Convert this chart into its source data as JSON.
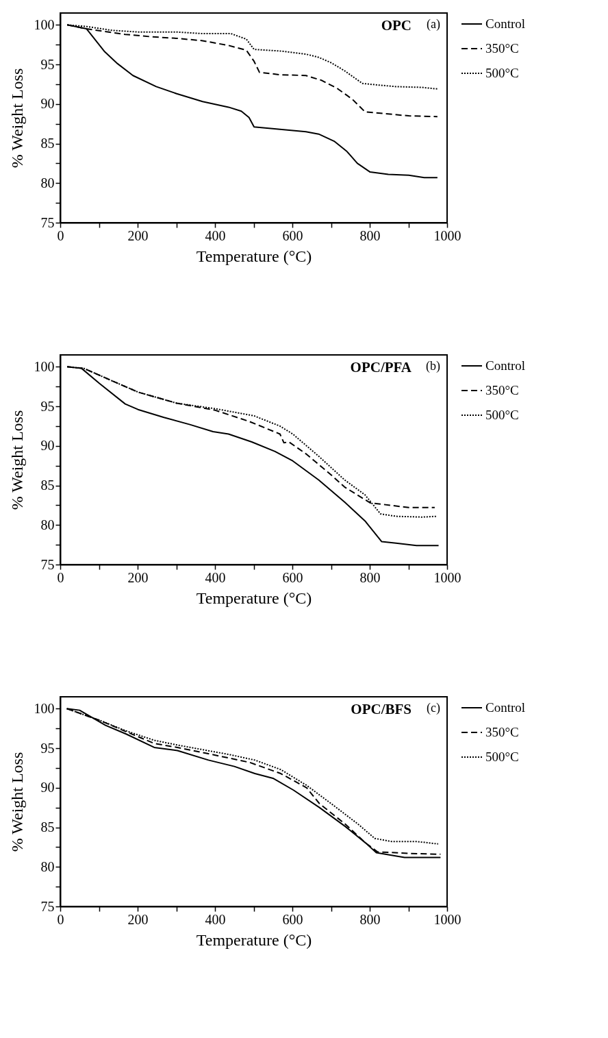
{
  "chart_data": [
    {
      "type": "line",
      "title": "OPC",
      "annotations": [
        "(a)"
      ],
      "xlabel": "Temperature (°C)",
      "ylabel": "% Weight Loss",
      "xlim": [
        0,
        1000
      ],
      "ylim": [
        75,
        101.5
      ],
      "xticks": [
        0,
        {
          "value": 100,
          "label": null
        },
        200,
        {
          "value": 300,
          "label": null
        },
        400,
        {
          "value": 500,
          "label": null
        },
        600,
        {
          "value": 700,
          "label": null
        },
        800,
        {
          "value": 900,
          "label": null
        },
        1000
      ],
      "yticks": [
        75,
        {
          "value": 77.5,
          "label": null
        },
        80,
        {
          "value": 82.5,
          "label": null
        },
        85,
        {
          "value": 87.5,
          "label": null
        },
        90,
        {
          "value": 92.5,
          "label": null
        },
        95,
        {
          "value": 97.5,
          "label": null
        },
        100
      ],
      "grid": false,
      "legend": "right",
      "series": [
        {
          "name": "Control",
          "color": "#000000",
          "line_style": "solid",
          "x": [
            18,
            68,
            115,
            148,
            188,
            248,
            301,
            368,
            435,
            468,
            488,
            501,
            568,
            635,
            668,
            708,
            741,
            768,
            801,
            848,
            901,
            941,
            975
          ],
          "values": [
            100,
            99.5,
            96.6,
            95.1,
            93.6,
            92.2,
            91.3,
            90.3,
            89.6,
            89.1,
            88.3,
            87.1,
            86.8,
            86.5,
            86.2,
            85.3,
            84.0,
            82.5,
            81.4,
            81.1,
            81.0,
            80.7,
            80.7
          ]
        },
        {
          "name": "350°C",
          "color": "#000000",
          "line_style": "dashed",
          "x": [
            18,
            68,
            168,
            235,
            301,
            368,
            435,
            481,
            501,
            515,
            568,
            635,
            675,
            715,
            755,
            788,
            835,
            901,
            975
          ],
          "values": [
            100,
            99.5,
            98.8,
            98.5,
            98.3,
            98.0,
            97.4,
            96.8,
            95.4,
            94.0,
            93.7,
            93.6,
            93.0,
            92.0,
            90.6,
            89.0,
            88.8,
            88.5,
            88.4
          ]
        },
        {
          "name": "500°C",
          "color": "#000000",
          "line_style": "dotted",
          "x": [
            18,
            68,
            135,
            201,
            301,
            368,
            441,
            481,
            501,
            568,
            635,
            668,
            701,
            735,
            781,
            821,
            868,
            935,
            975
          ],
          "values": [
            100,
            99.8,
            99.3,
            99.1,
            99.1,
            98.9,
            98.9,
            98.2,
            96.9,
            96.7,
            96.3,
            95.9,
            95.2,
            94.2,
            92.6,
            92.4,
            92.2,
            92.1,
            91.9
          ]
        }
      ]
    },
    {
      "type": "line",
      "title": "OPC/PFA",
      "annotations": [
        "(b)"
      ],
      "xlabel": "Temperature (°C)",
      "ylabel": "% Weight Loss",
      "xlim": [
        0,
        1000
      ],
      "ylim": [
        75,
        101.5
      ],
      "xticks": [
        0,
        {
          "value": 100,
          "label": null
        },
        200,
        {
          "value": 300,
          "label": null
        },
        400,
        {
          "value": 500,
          "label": null
        },
        600,
        {
          "value": 700,
          "label": null
        },
        800,
        {
          "value": 900,
          "label": null
        },
        1000
      ],
      "yticks": [
        75,
        {
          "value": 77.5,
          "label": null
        },
        80,
        {
          "value": 82.5,
          "label": null
        },
        85,
        {
          "value": 87.5,
          "label": null
        },
        90,
        {
          "value": 92.5,
          "label": null
        },
        95,
        {
          "value": 97.5,
          "label": null
        },
        100
      ],
      "grid": false,
      "legend": "right",
      "series": [
        {
          "name": "Control",
          "color": "#000000",
          "line_style": "solid",
          "x": [
            18,
            55,
            101,
            168,
            201,
            268,
            335,
            395,
            435,
            495,
            555,
            601,
            668,
            735,
            788,
            831,
            868,
            921,
            978
          ],
          "values": [
            100,
            99.8,
            97.9,
            95.3,
            94.6,
            93.6,
            92.7,
            91.8,
            91.5,
            90.5,
            89.3,
            88.1,
            85.7,
            82.9,
            80.5,
            77.9,
            77.7,
            77.4,
            77.4
          ]
        },
        {
          "name": "350°C",
          "color": "#000000",
          "line_style": "dashed",
          "x": [
            18,
            61,
            135,
            201,
            301,
            401,
            488,
            568,
            578,
            591,
            635,
            701,
            735,
            801,
            835,
            901,
            968
          ],
          "values": [
            100,
            99.8,
            98.2,
            96.8,
            95.4,
            94.5,
            93.1,
            91.5,
            90.4,
            90.5,
            89.0,
            86.3,
            84.8,
            82.8,
            82.6,
            82.2,
            82.2
          ]
        },
        {
          "name": "500°C",
          "color": "#000000",
          "line_style": "dotted",
          "x": [
            18,
            61,
            135,
            201,
            301,
            401,
            501,
            568,
            601,
            668,
            735,
            788,
            828,
            868,
            935,
            975
          ],
          "values": [
            100,
            99.8,
            98.2,
            96.8,
            95.4,
            94.7,
            93.8,
            92.5,
            91.5,
            88.7,
            85.7,
            83.8,
            81.4,
            81.1,
            81.0,
            81.1
          ]
        }
      ]
    },
    {
      "type": "line",
      "title": "OPC/BFS",
      "annotations": [
        "(c)"
      ],
      "xlabel": "Temperature (°C)",
      "ylabel": "% Weight Loss",
      "xlim": [
        0,
        1000
      ],
      "ylim": [
        75,
        101.5
      ],
      "xticks": [
        0,
        {
          "value": 100,
          "label": null
        },
        200,
        {
          "value": 300,
          "label": null
        },
        400,
        {
          "value": 500,
          "label": null
        },
        600,
        {
          "value": 700,
          "label": null
        },
        800,
        {
          "value": 900,
          "label": null
        },
        1000
      ],
      "yticks": [
        75,
        {
          "value": 77.5,
          "label": null
        },
        80,
        {
          "value": 82.5,
          "label": null
        },
        85,
        {
          "value": 87.5,
          "label": null
        },
        90,
        {
          "value": 92.5,
          "label": null
        },
        95,
        {
          "value": 97.5,
          "label": null
        },
        100
      ],
      "grid": false,
      "legend": "right",
      "series": [
        {
          "name": "Control",
          "color": "#000000",
          "line_style": "solid",
          "x": [
            17,
            50,
            117,
            170,
            243,
            303,
            383,
            450,
            503,
            550,
            603,
            670,
            737,
            790,
            817,
            890,
            983
          ],
          "values": [
            100,
            99.8,
            97.9,
            96.8,
            95.1,
            94.7,
            93.5,
            92.7,
            91.8,
            91.2,
            89.7,
            87.5,
            85.1,
            83.0,
            81.8,
            81.2,
            81.2
          ]
        },
        {
          "name": "350°C",
          "color": "#000000",
          "line_style": "dashed",
          "x": [
            17,
            103,
            170,
            243,
            303,
            403,
            490,
            570,
            637,
            670,
            737,
            790,
            820,
            903,
            983
          ],
          "values": [
            100,
            98.5,
            97.1,
            95.6,
            95.1,
            94.1,
            93.2,
            91.8,
            90.0,
            88.0,
            85.4,
            83.0,
            81.9,
            81.7,
            81.6
          ]
        },
        {
          "name": "500°C",
          "color": "#000000",
          "line_style": "dotted",
          "x": [
            17,
            103,
            170,
            243,
            303,
            437,
            503,
            570,
            637,
            703,
            770,
            813,
            857,
            923,
            977
          ],
          "values": [
            100,
            98.5,
            97.2,
            96.0,
            95.4,
            94.2,
            93.5,
            92.3,
            90.3,
            87.9,
            85.4,
            83.6,
            83.2,
            83.2,
            82.9
          ]
        }
      ]
    }
  ]
}
